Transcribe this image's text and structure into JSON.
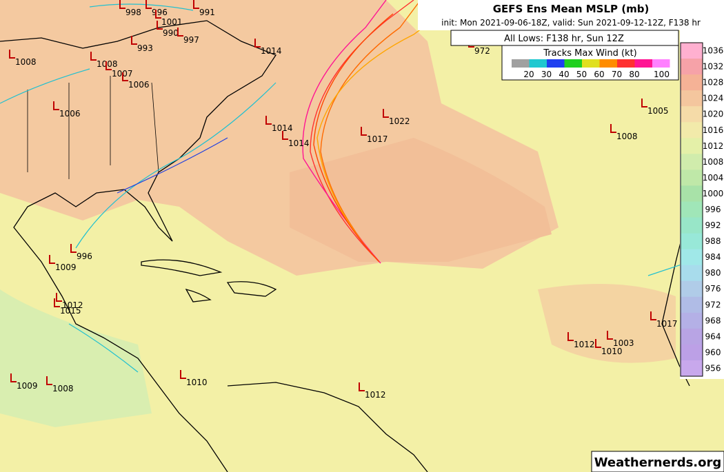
{
  "header": {
    "title": "GEFS Ens Mean MSLP (mb)",
    "subtitle": "init: Mon 2021-09-06-18Z, valid: Sun 2021-09-12-12Z, F138 hr",
    "lows_caption": "All Lows: F138 hr, Sun 12Z"
  },
  "wind_legend": {
    "title": "Tracks Max Wind (kt)",
    "values": [
      20,
      30,
      40,
      50,
      60,
      70,
      80,
      100
    ]
  },
  "pressure_scale": {
    "values": [
      1036,
      1032,
      1028,
      1024,
      1020,
      1016,
      1012,
      1008,
      1004,
      1000,
      996,
      992,
      988,
      984,
      980,
      976,
      972,
      968,
      964,
      960,
      956
    ]
  },
  "lows": [
    998,
    996,
    991,
    1001,
    990,
    997,
    993,
    1014,
    972,
    1008,
    1008,
    1007,
    1006,
    1006,
    1014,
    1014,
    1022,
    1017,
    1008,
    1005,
    996,
    1009,
    1012,
    1015,
    1012,
    1012,
    1010,
    1003,
    1009,
    1008,
    1010,
    1017
  ],
  "watermark": "Weathernerds.org"
}
